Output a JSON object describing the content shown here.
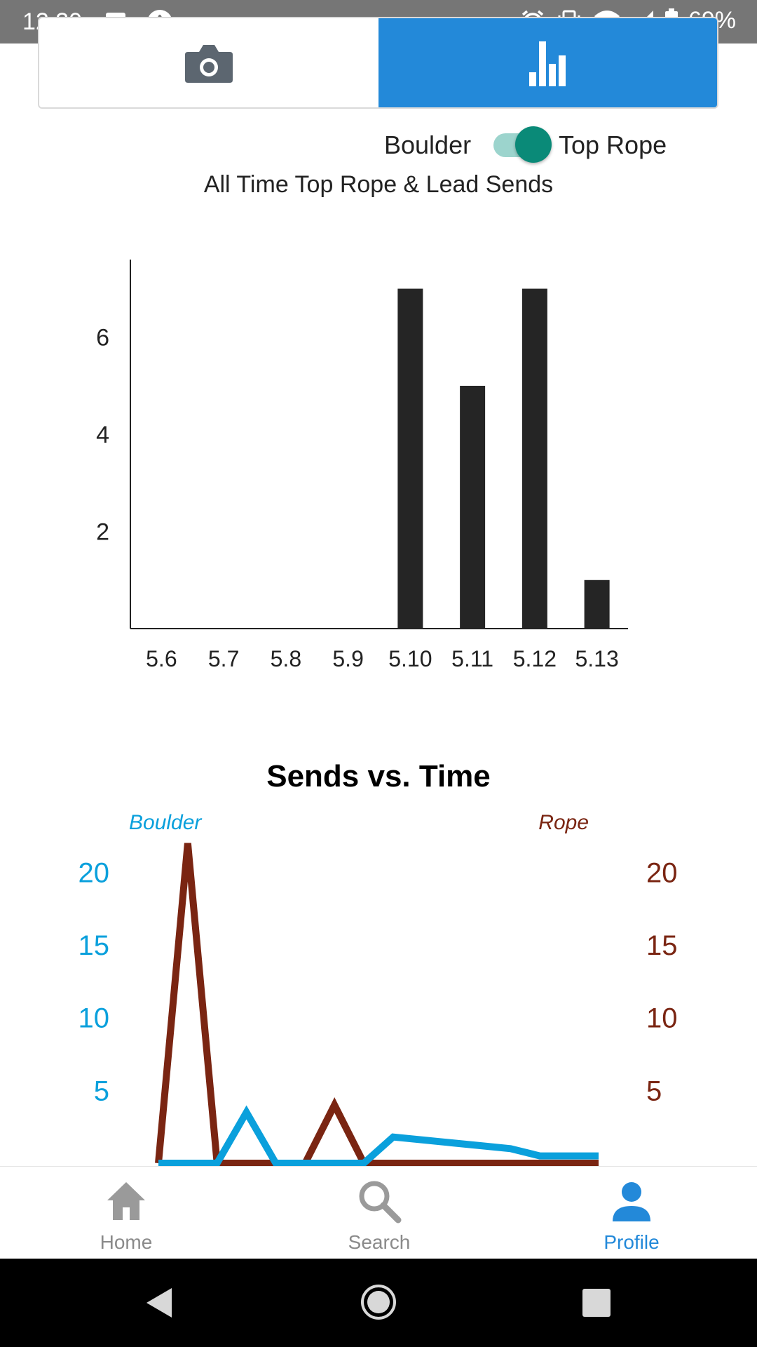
{
  "status_bar": {
    "time": "12:30",
    "battery": "69%",
    "left_icons": [
      "image-icon",
      "app-icon"
    ],
    "right_icons": [
      "alarm-icon",
      "vibrate-icon",
      "wifi-icon",
      "signal-icon",
      "battery-icon"
    ]
  },
  "tabs": [
    {
      "icon": "camera-icon",
      "active": false
    },
    {
      "icon": "bar-chart-icon",
      "active": true
    }
  ],
  "toggle": {
    "left_label": "Boulder",
    "right_label": "Top Rope",
    "state": "on"
  },
  "bar_section": {
    "title": "All Time Top Rope & Lead Sends"
  },
  "line_section": {
    "title": "Sends vs. Time"
  },
  "chart_data": [
    {
      "type": "bar",
      "title": "All Time Top Rope & Lead Sends",
      "categories": [
        "5.6",
        "5.7",
        "5.8",
        "5.9",
        "5.10",
        "5.11",
        "5.12",
        "5.13"
      ],
      "values": [
        0,
        0,
        0,
        0,
        7,
        5,
        7,
        1
      ],
      "yticks": [
        "2",
        "4",
        "6"
      ],
      "ylim": [
        0,
        7.6
      ],
      "grid": false,
      "color": "#252525"
    },
    {
      "type": "line",
      "title": "Sends vs. Time",
      "left_axis_label": "Boulder",
      "right_axis_label": "Rope",
      "left_ticks": [
        "5",
        "10",
        "15",
        "20"
      ],
      "right_ticks": [
        "5",
        "10",
        "15",
        "20"
      ],
      "ylim": [
        0,
        22
      ],
      "x": [
        0,
        1,
        2,
        3,
        4,
        5,
        6,
        7,
        8,
        9,
        10,
        11,
        12,
        13,
        14,
        15
      ],
      "series": [
        {
          "name": "Boulder",
          "color": "#0aa0dc",
          "values": [
            0,
            0,
            0,
            3.5,
            0,
            0,
            0,
            0,
            1.8,
            1.6,
            1.4,
            1.2,
            1.0,
            0.5,
            0.5,
            0.5
          ]
        },
        {
          "name": "Rope",
          "color": "#7a2512",
          "values": [
            0,
            22,
            0,
            0,
            0,
            0,
            4,
            0,
            0,
            0,
            0,
            0,
            0,
            0,
            0,
            0
          ]
        }
      ],
      "grid": false
    }
  ],
  "bottom_nav": [
    {
      "label": "Home",
      "icon": "home-icon",
      "active": false
    },
    {
      "label": "Search",
      "icon": "search-icon",
      "active": false
    },
    {
      "label": "Profile",
      "icon": "profile-icon",
      "active": true
    }
  ],
  "android_nav": [
    "back-icon",
    "home-circle-icon",
    "recents-icon"
  ],
  "colors": {
    "accent": "#2389d9",
    "status_bar": "#767676",
    "toggle_on": "#0a8a78"
  }
}
